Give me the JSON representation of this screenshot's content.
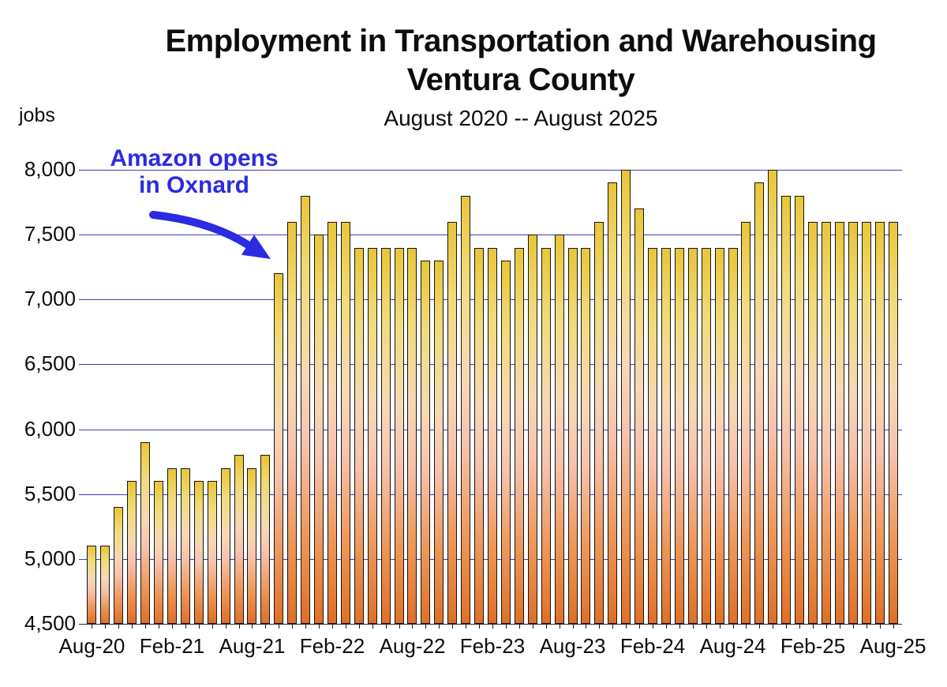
{
  "header": {
    "title_line1": "Employment in Transportation and Warehousing",
    "title_line2": "Ventura County",
    "subtitle": "August 2020 -- August 2025",
    "y_axis_unit": "jobs"
  },
  "annotation": {
    "line1": "Amazon opens",
    "line2": "in Oxnard",
    "color": "#2b2be2"
  },
  "colors": {
    "gridline": "#3c3cc8",
    "bar_top": "#e8c637",
    "bar_middle": "#f6d8b6",
    "bar_bottom": "#df7026",
    "bar_outline": "#151515",
    "title_text": "#0d0d0d"
  },
  "chart_data": {
    "type": "bar",
    "title": "Employment in Transportation and Warehousing",
    "subtitle": "Ventura County",
    "period": "August 2020 -- August 2025",
    "ylabel": "jobs",
    "ylim": [
      4500,
      8000
    ],
    "y_ticks": [
      4500,
      5000,
      5500,
      6000,
      6500,
      7000,
      7500,
      8000
    ],
    "grid": true,
    "x_tick_every": 6,
    "x_tick_labels": [
      "Aug-20",
      "Feb-21",
      "Aug-21",
      "Feb-22",
      "Aug-22",
      "Feb-23",
      "Aug-23",
      "Feb-24",
      "Aug-24",
      "Feb-25",
      "Aug-25"
    ],
    "x": [
      "Aug-20",
      "Sep-20",
      "Oct-20",
      "Nov-20",
      "Dec-20",
      "Jan-21",
      "Feb-21",
      "Mar-21",
      "Apr-21",
      "May-21",
      "Jun-21",
      "Jul-21",
      "Aug-21",
      "Sep-21",
      "Oct-21",
      "Nov-21",
      "Dec-21",
      "Jan-22",
      "Feb-22",
      "Mar-22",
      "Apr-22",
      "May-22",
      "Jun-22",
      "Jul-22",
      "Aug-22",
      "Sep-22",
      "Oct-22",
      "Nov-22",
      "Dec-22",
      "Jan-23",
      "Feb-23",
      "Mar-23",
      "Apr-23",
      "May-23",
      "Jun-23",
      "Jul-23",
      "Aug-23",
      "Sep-23",
      "Oct-23",
      "Nov-23",
      "Dec-23",
      "Jan-24",
      "Feb-24",
      "Mar-24",
      "Apr-24",
      "May-24",
      "Jun-24",
      "Jul-24",
      "Aug-24",
      "Sep-24",
      "Oct-24",
      "Nov-24",
      "Dec-24",
      "Jan-25",
      "Feb-25",
      "Mar-25",
      "Apr-25",
      "May-25",
      "Jun-25",
      "Jul-25",
      "Aug-25"
    ],
    "values": [
      5100,
      5100,
      5400,
      5600,
      5900,
      5600,
      5700,
      5700,
      5600,
      5600,
      5700,
      5800,
      5700,
      5800,
      7200,
      7600,
      7800,
      7500,
      7600,
      7600,
      7400,
      7400,
      7400,
      7400,
      7400,
      7300,
      7300,
      7600,
      7800,
      7400,
      7400,
      7300,
      7400,
      7500,
      7400,
      7500,
      7400,
      7400,
      7600,
      7900,
      8000,
      7700,
      7400,
      7400,
      7400,
      7400,
      7400,
      7400,
      7400,
      7600,
      7900,
      8000,
      7800,
      7800,
      7600,
      7600,
      7600,
      7600,
      7600,
      7600,
      7600
    ],
    "annotation": {
      "text": "Amazon opens in Oxnard",
      "points_at": "Oct-21"
    }
  }
}
